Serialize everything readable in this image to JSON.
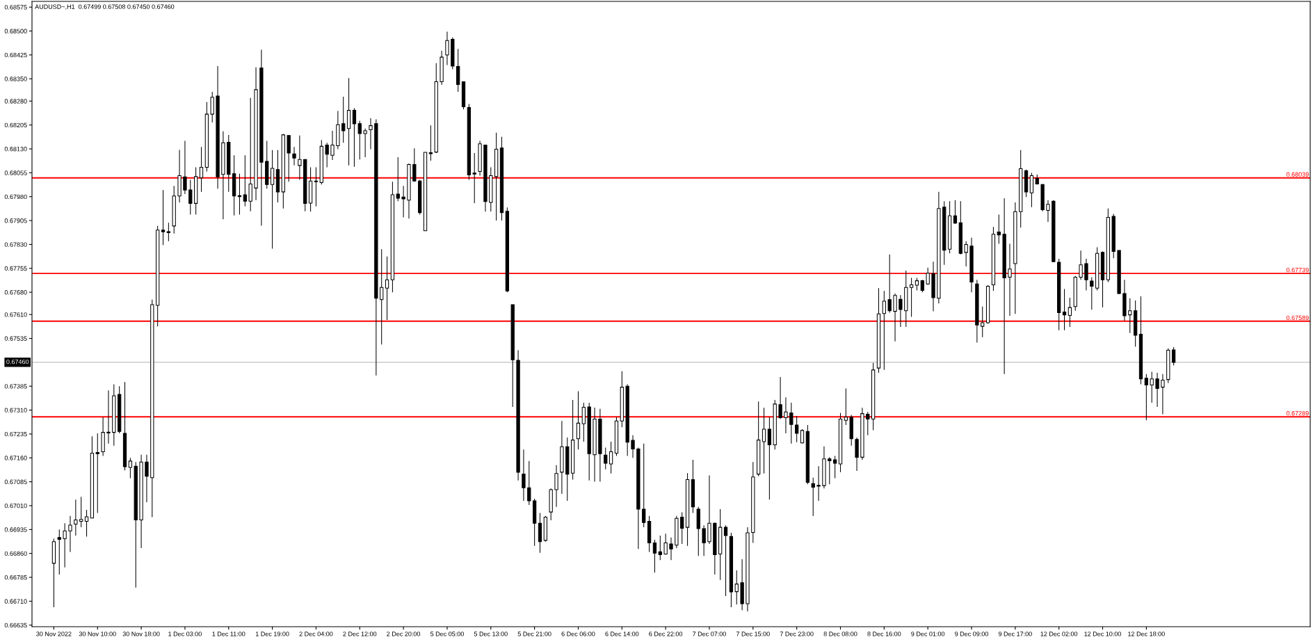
{
  "chart_data": {
    "type": "candlestick",
    "title": "AUDUSD~,H1  0.67499 0.67508 0.67450 0.67460",
    "color": "#000000",
    "categories": [
      "30 Nov 2022",
      null,
      null,
      null,
      null,
      null,
      null,
      null,
      "30 Nov 10:00",
      null,
      null,
      null,
      null,
      null,
      null,
      null,
      "30 Nov 18:00",
      null,
      null,
      null,
      null,
      null,
      null,
      null,
      "1 Dec 03:00",
      null,
      null,
      null,
      null,
      null,
      null,
      null,
      "1 Dec 11:00",
      null,
      null,
      null,
      null,
      null,
      null,
      null,
      "1 Dec 19:00",
      null,
      null,
      null,
      null,
      null,
      null,
      null,
      "2 Dec 04:00",
      null,
      null,
      null,
      null,
      null,
      null,
      null,
      "2 Dec 12:00",
      null,
      null,
      null,
      null,
      null,
      null,
      null,
      "2 Dec 20:00",
      null,
      null,
      null,
      null,
      null,
      null,
      null,
      "5 Dec 05:00",
      null,
      null,
      null,
      null,
      null,
      null,
      null,
      "5 Dec 13:00",
      null,
      null,
      null,
      null,
      null,
      null,
      null,
      "5 Dec 21:00",
      null,
      null,
      null,
      null,
      null,
      null,
      null,
      "6 Dec 06:00",
      null,
      null,
      null,
      null,
      null,
      null,
      null,
      "6 Dec 14:00",
      null,
      null,
      null,
      null,
      null,
      null,
      null,
      "6 Dec 22:00",
      null,
      null,
      null,
      null,
      null,
      null,
      null,
      "7 Dec 07:00",
      null,
      null,
      null,
      null,
      null,
      null,
      null,
      "7 Dec 15:00",
      null,
      null,
      null,
      null,
      null,
      null,
      null,
      "7 Dec 23:00",
      null,
      null,
      null,
      null,
      null,
      null,
      null,
      "8 Dec 08:00",
      null,
      null,
      null,
      null,
      null,
      null,
      null,
      "8 Dec 16:00",
      null,
      null,
      null,
      null,
      null,
      null,
      null,
      "9 Dec 01:00",
      null,
      null,
      null,
      null,
      null,
      null,
      null,
      "9 Dec 09:00",
      null,
      null,
      null,
      null,
      null,
      null,
      null,
      "9 Dec 17:00",
      null,
      null,
      null,
      null,
      null,
      null,
      null,
      "12 Dec 02:00",
      null,
      null,
      null,
      null,
      null,
      null,
      null,
      "12 Dec 10:00",
      null,
      null,
      null,
      null,
      null,
      null,
      null,
      "12 Dec 18:00",
      null,
      null,
      null,
      null,
      null
    ],
    "ohlc": [
      [
        0.66829,
        0.66906,
        0.66691,
        0.66897
      ],
      [
        0.6691,
        0.66935,
        0.66794,
        0.66904
      ],
      [
        0.66906,
        0.66955,
        0.66816,
        0.66931
      ],
      [
        0.66931,
        0.66978,
        0.66865,
        0.66949
      ],
      [
        0.66952,
        0.67029,
        0.66916,
        0.66965
      ],
      [
        0.66961,
        0.67038,
        0.66942,
        0.66967
      ],
      [
        0.66961,
        0.66997,
        0.66913,
        0.66975
      ],
      [
        0.66971,
        0.67228,
        0.6697,
        0.67175
      ],
      [
        0.67177,
        0.67237,
        0.66987,
        0.67173
      ],
      [
        0.67179,
        0.67288,
        0.67166,
        0.6724
      ],
      [
        0.67241,
        0.67372,
        0.67205,
        0.67238
      ],
      [
        0.6724,
        0.67391,
        0.67198,
        0.67355
      ],
      [
        0.67359,
        0.67385,
        0.67237,
        0.67243
      ],
      [
        0.67237,
        0.67398,
        0.67121,
        0.67132
      ],
      [
        0.6713,
        0.6716,
        0.67096,
        0.6715
      ],
      [
        0.67134,
        0.67147,
        0.66753,
        0.66965
      ],
      [
        0.66965,
        0.6717,
        0.66877,
        0.67147
      ],
      [
        0.67147,
        0.6717,
        0.67021,
        0.67102
      ],
      [
        0.67098,
        0.67657,
        0.66974,
        0.67641
      ],
      [
        0.67639,
        0.67888,
        0.67573,
        0.67875
      ],
      [
        0.67875,
        0.68001,
        0.67828,
        0.6787
      ],
      [
        0.6787,
        0.67898,
        0.6784,
        0.67867
      ],
      [
        0.67888,
        0.68014,
        0.67864,
        0.67982
      ],
      [
        0.67982,
        0.68127,
        0.67962,
        0.68046
      ],
      [
        0.68042,
        0.68155,
        0.67988,
        0.68001
      ],
      [
        0.68001,
        0.68033,
        0.67924,
        0.67959
      ],
      [
        0.67959,
        0.68072,
        0.67924,
        0.68043
      ],
      [
        0.68039,
        0.68136,
        0.67995,
        0.68072
      ],
      [
        0.68072,
        0.68277,
        0.68059,
        0.68239
      ],
      [
        0.68239,
        0.68309,
        0.68213,
        0.68292
      ],
      [
        0.68296,
        0.6839,
        0.68005,
        0.68042
      ],
      [
        0.6805,
        0.68185,
        0.67909,
        0.68149
      ],
      [
        0.68151,
        0.68174,
        0.67995,
        0.6805
      ],
      [
        0.68052,
        0.6811,
        0.67921,
        0.67982
      ],
      [
        0.67983,
        0.68052,
        0.67924,
        0.6798
      ],
      [
        0.67986,
        0.6811,
        0.6795,
        0.67966
      ],
      [
        0.67966,
        0.6829,
        0.67934,
        0.6802
      ],
      [
        0.68007,
        0.68386,
        0.67969,
        0.68316
      ],
      [
        0.68384,
        0.68441,
        0.67889,
        0.68088
      ],
      [
        0.68091,
        0.68155,
        0.68005,
        0.68018
      ],
      [
        0.68018,
        0.68126,
        0.67817,
        0.68069
      ],
      [
        0.68065,
        0.68126,
        0.67962,
        0.67995
      ],
      [
        0.67995,
        0.68177,
        0.67943,
        0.68174
      ],
      [
        0.68172,
        0.68172,
        0.68027,
        0.68117
      ],
      [
        0.68114,
        0.68136,
        0.68078,
        0.68101
      ],
      [
        0.68078,
        0.68172,
        0.68033,
        0.68097
      ],
      [
        0.68097,
        0.68097,
        0.67934,
        0.67959
      ],
      [
        0.6796,
        0.68072,
        0.67933,
        0.68029
      ],
      [
        0.68029,
        0.68072,
        0.6795,
        0.68027
      ],
      [
        0.68024,
        0.68158,
        0.68018,
        0.68138
      ],
      [
        0.68142,
        0.68149,
        0.68072,
        0.68113
      ],
      [
        0.6811,
        0.68187,
        0.68095,
        0.68142
      ],
      [
        0.6814,
        0.68249,
        0.68129,
        0.68206
      ],
      [
        0.68209,
        0.68294,
        0.68149,
        0.68187
      ],
      [
        0.68194,
        0.68352,
        0.68078,
        0.68251
      ],
      [
        0.68251,
        0.68258,
        0.68074,
        0.68209
      ],
      [
        0.68209,
        0.68218,
        0.68097,
        0.68178
      ],
      [
        0.68178,
        0.68194,
        0.68104,
        0.68187
      ],
      [
        0.6819,
        0.68226,
        0.68129,
        0.68203
      ],
      [
        0.68209,
        0.68223,
        0.67419,
        0.67661
      ],
      [
        0.67657,
        0.67815,
        0.67516,
        0.67695
      ],
      [
        0.67693,
        0.67792,
        0.67593,
        0.67719
      ],
      [
        0.67719,
        0.68027,
        0.6768,
        0.67986
      ],
      [
        0.67988,
        0.68104,
        0.67966,
        0.67975
      ],
      [
        0.67979,
        0.68014,
        0.67915,
        0.67973
      ],
      [
        0.67969,
        0.68084,
        0.67911,
        0.68081
      ],
      [
        0.68081,
        0.68132,
        0.68027,
        0.68029
      ],
      [
        0.68029,
        0.68033,
        0.67924,
        0.6793
      ],
      [
        0.67873,
        0.68119,
        0.67873,
        0.68119
      ],
      [
        0.68118,
        0.68204,
        0.68093,
        0.68115
      ],
      [
        0.6812,
        0.68399,
        0.68117,
        0.68341
      ],
      [
        0.68341,
        0.68438,
        0.68331,
        0.68418
      ],
      [
        0.68425,
        0.68498,
        0.68393,
        0.6847
      ],
      [
        0.68474,
        0.6848,
        0.6838,
        0.6839
      ],
      [
        0.68389,
        0.68444,
        0.68309,
        0.68332
      ],
      [
        0.68341,
        0.68341,
        0.68254,
        0.68262
      ],
      [
        0.6826,
        0.68271,
        0.68033,
        0.68048
      ],
      [
        0.68054,
        0.68117,
        0.6796,
        0.68051
      ],
      [
        0.68059,
        0.68155,
        0.68046,
        0.68146
      ],
      [
        0.68142,
        0.68142,
        0.67933,
        0.67965
      ],
      [
        0.67962,
        0.68072,
        0.67933,
        0.68046
      ],
      [
        0.68043,
        0.68181,
        0.67905,
        0.68129
      ],
      [
        0.68133,
        0.68168,
        0.67905,
        0.6793
      ],
      [
        0.67934,
        0.67946,
        0.6768,
        0.67684
      ],
      [
        0.67641,
        0.67641,
        0.6732,
        0.67468
      ],
      [
        0.67466,
        0.67498,
        0.67089,
        0.67115
      ],
      [
        0.67109,
        0.67186,
        0.67025,
        0.67066
      ],
      [
        0.67066,
        0.6715,
        0.67012,
        0.67025
      ],
      [
        0.67025,
        0.67032,
        0.66884,
        0.66955
      ],
      [
        0.66955,
        0.66987,
        0.66862,
        0.66897
      ],
      [
        0.66901,
        0.66978,
        0.66897,
        0.66974
      ],
      [
        0.6699,
        0.67064,
        0.66964,
        0.6706
      ],
      [
        0.6706,
        0.67137,
        0.67006,
        0.67111
      ],
      [
        0.67115,
        0.67276,
        0.67047,
        0.67195
      ],
      [
        0.67195,
        0.67224,
        0.67025,
        0.67109
      ],
      [
        0.67112,
        0.67342,
        0.67092,
        0.67216
      ],
      [
        0.6722,
        0.67369,
        0.67186,
        0.67269
      ],
      [
        0.67267,
        0.67333,
        0.67211,
        0.67319
      ],
      [
        0.6732,
        0.67333,
        0.67089,
        0.67173
      ],
      [
        0.6717,
        0.67318,
        0.67085,
        0.67282
      ],
      [
        0.67282,
        0.67314,
        0.67085,
        0.67173
      ],
      [
        0.67169,
        0.67192,
        0.67124,
        0.67143
      ],
      [
        0.67141,
        0.67211,
        0.67111,
        0.67179
      ],
      [
        0.67175,
        0.67288,
        0.67166,
        0.67276
      ],
      [
        0.67276,
        0.67432,
        0.67256,
        0.67382
      ],
      [
        0.67385,
        0.67391,
        0.67166,
        0.67209
      ],
      [
        0.67215,
        0.67231,
        0.6716,
        0.67188
      ],
      [
        0.67188,
        0.67192,
        0.66874,
        0.66999
      ],
      [
        0.66999,
        0.67205,
        0.66942,
        0.66957
      ],
      [
        0.66961,
        0.66978,
        0.66865,
        0.66893
      ],
      [
        0.66893,
        0.66903,
        0.668,
        0.66861
      ],
      [
        0.66865,
        0.66916,
        0.66839,
        0.66856
      ],
      [
        0.66858,
        0.66922,
        0.66856,
        0.66893
      ],
      [
        0.6689,
        0.6691,
        0.66839,
        0.66874
      ],
      [
        0.66886,
        0.66978,
        0.66877,
        0.6697
      ],
      [
        0.66974,
        0.66989,
        0.6689,
        0.66939
      ],
      [
        0.66942,
        0.67112,
        0.66884,
        0.67092
      ],
      [
        0.67092,
        0.67154,
        0.66987,
        0.67006
      ],
      [
        0.66999,
        0.67006,
        0.66852,
        0.66938
      ],
      [
        0.66938,
        0.66948,
        0.66852,
        0.66893
      ],
      [
        0.66897,
        0.67105,
        0.6689,
        0.66955
      ],
      [
        0.66955,
        0.66957,
        0.66794,
        0.66856
      ],
      [
        0.66858,
        0.66999,
        0.66777,
        0.66942
      ],
      [
        0.66942,
        0.66948,
        0.66726,
        0.66916
      ],
      [
        0.66913,
        0.66925,
        0.66691,
        0.66739
      ],
      [
        0.6674,
        0.66807,
        0.667,
        0.66764
      ],
      [
        0.66768,
        0.66842,
        0.66682,
        0.66702
      ],
      [
        0.66702,
        0.66942,
        0.66678,
        0.66925
      ],
      [
        0.66926,
        0.67147,
        0.66893,
        0.671
      ],
      [
        0.67109,
        0.67337,
        0.67102,
        0.67216
      ],
      [
        0.67211,
        0.67317,
        0.67111,
        0.6725
      ],
      [
        0.6725,
        0.67288,
        0.67029,
        0.67201
      ],
      [
        0.67201,
        0.67342,
        0.67186,
        0.67329
      ],
      [
        0.67327,
        0.67414,
        0.67282,
        0.67286
      ],
      [
        0.67286,
        0.6735,
        0.67237,
        0.67304
      ],
      [
        0.67301,
        0.67333,
        0.67205,
        0.67265
      ],
      [
        0.67263,
        0.67291,
        0.67209,
        0.67237
      ],
      [
        0.67207,
        0.6725,
        0.67205,
        0.67246
      ],
      [
        0.67243,
        0.67263,
        0.67077,
        0.67083
      ],
      [
        0.67079,
        0.67098,
        0.66978,
        0.67068
      ],
      [
        0.67074,
        0.67134,
        0.67025,
        0.67071
      ],
      [
        0.67073,
        0.67196,
        0.67064,
        0.67157
      ],
      [
        0.67157,
        0.67162,
        0.67077,
        0.67151
      ],
      [
        0.67154,
        0.67166,
        0.67096,
        0.67143
      ],
      [
        0.67141,
        0.67301,
        0.67115,
        0.67282
      ],
      [
        0.67278,
        0.67378,
        0.67263,
        0.67288
      ],
      [
        0.67288,
        0.67295,
        0.67198,
        0.6722
      ],
      [
        0.67218,
        0.67224,
        0.67119,
        0.67162
      ],
      [
        0.67162,
        0.67317,
        0.67154,
        0.67299
      ],
      [
        0.67297,
        0.67304,
        0.67231,
        0.67282
      ],
      [
        0.67282,
        0.67458,
        0.67247,
        0.67436
      ],
      [
        0.67442,
        0.67693,
        0.67427,
        0.67612
      ],
      [
        0.67613,
        0.67684,
        0.67436,
        0.67652
      ],
      [
        0.67657,
        0.67799,
        0.67616,
        0.67622
      ],
      [
        0.6762,
        0.67676,
        0.67526,
        0.6767
      ],
      [
        0.67658,
        0.67671,
        0.67571,
        0.67626
      ],
      [
        0.67622,
        0.67748,
        0.67571,
        0.67695
      ],
      [
        0.67695,
        0.67725,
        0.67603,
        0.67703
      ],
      [
        0.67702,
        0.67725,
        0.67686,
        0.67716
      ],
      [
        0.67716,
        0.67719,
        0.6768,
        0.67686
      ],
      [
        0.67706,
        0.67757,
        0.67703,
        0.6774
      ],
      [
        0.67738,
        0.67776,
        0.6762,
        0.67663
      ],
      [
        0.67661,
        0.67995,
        0.67645,
        0.67943
      ],
      [
        0.67947,
        0.67965,
        0.67766,
        0.67812
      ],
      [
        0.67815,
        0.67966,
        0.67802,
        0.6792
      ],
      [
        0.6792,
        0.67969,
        0.67894,
        0.67897
      ],
      [
        0.67898,
        0.67966,
        0.67799,
        0.67802
      ],
      [
        0.67805,
        0.6784,
        0.67761,
        0.6783
      ],
      [
        0.67825,
        0.67851,
        0.6768,
        0.67712
      ],
      [
        0.67706,
        0.67719,
        0.67522,
        0.67577
      ],
      [
        0.67573,
        0.67635,
        0.67539,
        0.67584
      ],
      [
        0.67584,
        0.67702,
        0.67581,
        0.67699
      ],
      [
        0.67703,
        0.67885,
        0.67684,
        0.67862
      ],
      [
        0.67869,
        0.67924,
        0.67832,
        0.6786
      ],
      [
        0.67862,
        0.67975,
        0.67423,
        0.67725
      ],
      [
        0.67727,
        0.67832,
        0.67606,
        0.67753
      ],
      [
        0.6777,
        0.67962,
        0.67612,
        0.67933
      ],
      [
        0.67933,
        0.68126,
        0.67883,
        0.68068
      ],
      [
        0.68061,
        0.68065,
        0.67979,
        0.67995
      ],
      [
        0.67992,
        0.68055,
        0.67947,
        0.68046
      ],
      [
        0.68037,
        0.6805,
        0.68018,
        0.6802
      ],
      [
        0.68018,
        0.6802,
        0.67934,
        0.67939
      ],
      [
        0.67937,
        0.67969,
        0.67901,
        0.67956
      ],
      [
        0.67966,
        0.67969,
        0.67774,
        0.67776
      ],
      [
        0.67774,
        0.67785,
        0.67561,
        0.67616
      ],
      [
        0.67618,
        0.6769,
        0.67561,
        0.67609
      ],
      [
        0.67607,
        0.67663,
        0.67571,
        0.67632
      ],
      [
        0.67635,
        0.67731,
        0.67622,
        0.67727
      ],
      [
        0.67727,
        0.67811,
        0.67719,
        0.67766
      ],
      [
        0.6777,
        0.67785,
        0.67686,
        0.67719
      ],
      [
        0.67715,
        0.67727,
        0.67625,
        0.67699
      ],
      [
        0.67693,
        0.67821,
        0.67686,
        0.67802
      ],
      [
        0.67805,
        0.67808,
        0.67632,
        0.67719
      ],
      [
        0.67719,
        0.67943,
        0.67712,
        0.67915
      ],
      [
        0.67918,
        0.67926,
        0.67787,
        0.67808
      ],
      [
        0.67811,
        0.67811,
        0.67674,
        0.67676
      ],
      [
        0.67676,
        0.67719,
        0.6759,
        0.67606
      ],
      [
        0.67609,
        0.67661,
        0.67552,
        0.67622
      ],
      [
        0.67622,
        0.67654,
        0.67509,
        0.67545
      ],
      [
        0.67548,
        0.67667,
        0.67391,
        0.67408
      ],
      [
        0.6741,
        0.67423,
        0.67278,
        0.67389
      ],
      [
        0.67389,
        0.6743,
        0.67333,
        0.67408
      ],
      [
        0.67408,
        0.67427,
        0.6732,
        0.67378
      ],
      [
        0.67382,
        0.67423,
        0.67297,
        0.67404
      ],
      [
        0.67406,
        0.67504,
        0.67395,
        0.67498
      ],
      [
        0.67499,
        0.67508,
        0.6745,
        0.6746
      ]
    ],
    "ylim": [
      0.6663,
      0.68593
    ],
    "yticks": [
      {
        "value": 0.68575,
        "label": "0.68575"
      },
      {
        "value": 0.685,
        "label": "0.68500"
      },
      {
        "value": 0.68425,
        "label": "0.68425"
      },
      {
        "value": 0.6835,
        "label": "0.68350"
      },
      {
        "value": 0.6828,
        "label": "0.68280"
      },
      {
        "value": 0.68205,
        "label": "0.68205"
      },
      {
        "value": 0.6813,
        "label": "0.68130"
      },
      {
        "value": 0.68055,
        "label": "0.68055"
      },
      {
        "value": 0.6798,
        "label": "0.67980"
      },
      {
        "value": 0.67905,
        "label": "0.67905"
      },
      {
        "value": 0.6783,
        "label": "0.67830"
      },
      {
        "value": 0.67755,
        "label": "0.67755"
      },
      {
        "value": 0.6768,
        "label": "0.67680"
      },
      {
        "value": 0.6761,
        "label": "0.67610"
      },
      {
        "value": 0.67535,
        "label": "0.67535"
      },
      {
        "value": 0.67385,
        "label": "0.67385"
      },
      {
        "value": 0.6731,
        "label": "0.67310"
      },
      {
        "value": 0.67235,
        "label": "0.67235"
      },
      {
        "value": 0.6716,
        "label": "0.67160"
      },
      {
        "value": 0.67085,
        "label": "0.67085"
      },
      {
        "value": 0.6701,
        "label": "0.67010"
      },
      {
        "value": 0.66935,
        "label": "0.66935"
      },
      {
        "value": 0.6686,
        "label": "0.66860"
      },
      {
        "value": 0.66785,
        "label": "0.66785"
      },
      {
        "value": 0.6671,
        "label": "0.66710"
      },
      {
        "value": 0.66635,
        "label": "0.66635"
      }
    ],
    "ref_lines": [
      {
        "axis": "y",
        "value": 0.68039,
        "label": "0.68039",
        "color": "#ff0000"
      },
      {
        "axis": "y",
        "value": 0.67739,
        "label": "0.67739",
        "color": "#ff0000"
      },
      {
        "axis": "y",
        "value": 0.67589,
        "label": "0.67589",
        "color": "#ff0000"
      },
      {
        "axis": "y",
        "value": 0.67289,
        "label": "0.67289",
        "color": "#ff0000"
      },
      {
        "axis": "y",
        "value": 0.6746,
        "label": "0.67460",
        "color": "#c0c0c0"
      }
    ]
  }
}
